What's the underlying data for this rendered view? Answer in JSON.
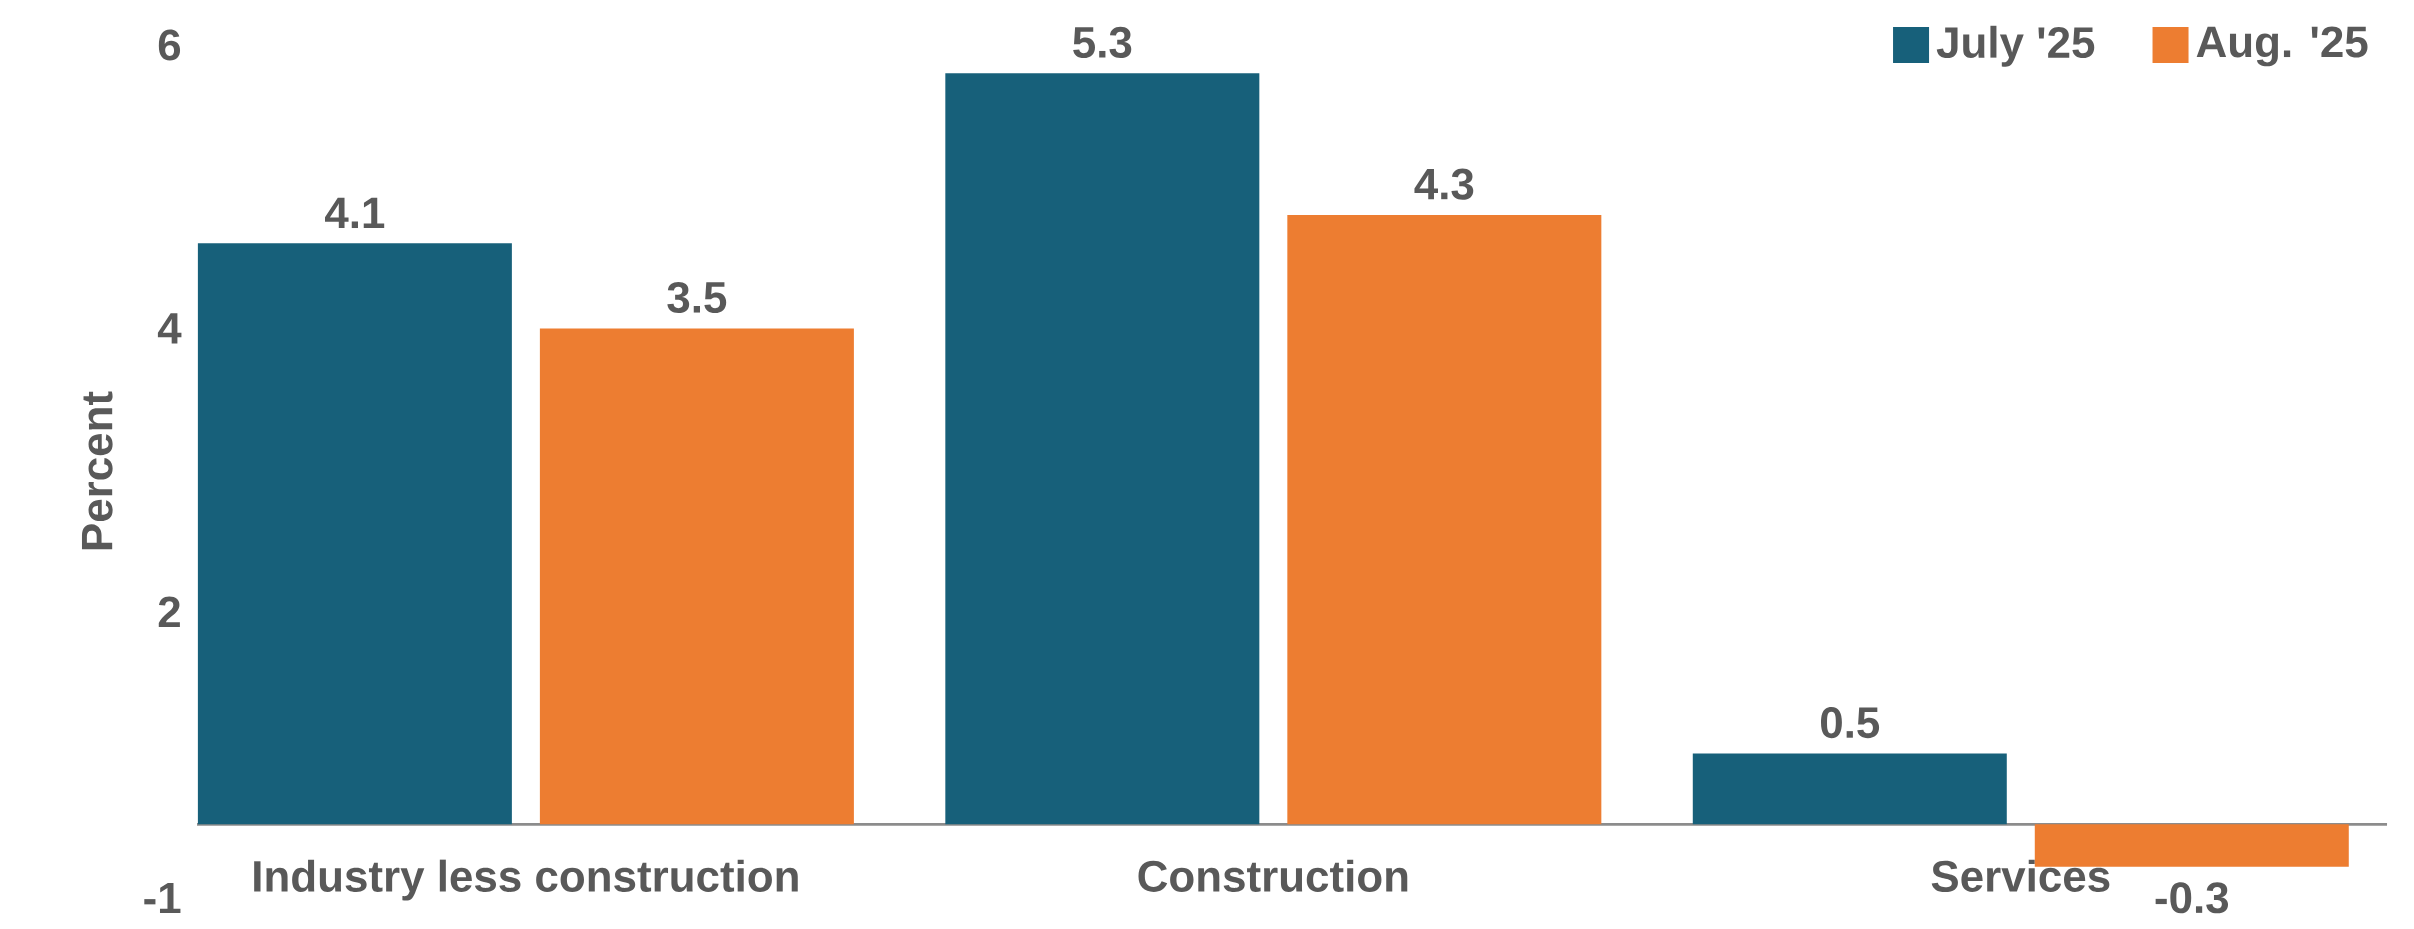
{
  "chart_data": {
    "type": "bar",
    "ylabel": "Percent",
    "categories": [
      "Industry less construction",
      "Construction",
      "Services"
    ],
    "series": [
      {
        "name": "July '25",
        "color": "#17607a",
        "values": [
          4.1,
          5.3,
          0.5
        ]
      },
      {
        "name": "Aug. '25",
        "color": "#ed7d31",
        "values": [
          3.5,
          4.3,
          -0.3
        ]
      }
    ],
    "ylim": [
      -0.52,
      5.5
    ],
    "yticks": [
      {
        "value": -0.52,
        "label": "-1"
      },
      {
        "value": 1.5,
        "label": "2"
      },
      {
        "value": 3.5,
        "label": "4"
      },
      {
        "value": 5.5,
        "label": "6"
      }
    ],
    "data_labels": true,
    "legend": "top right",
    "grid": false
  }
}
